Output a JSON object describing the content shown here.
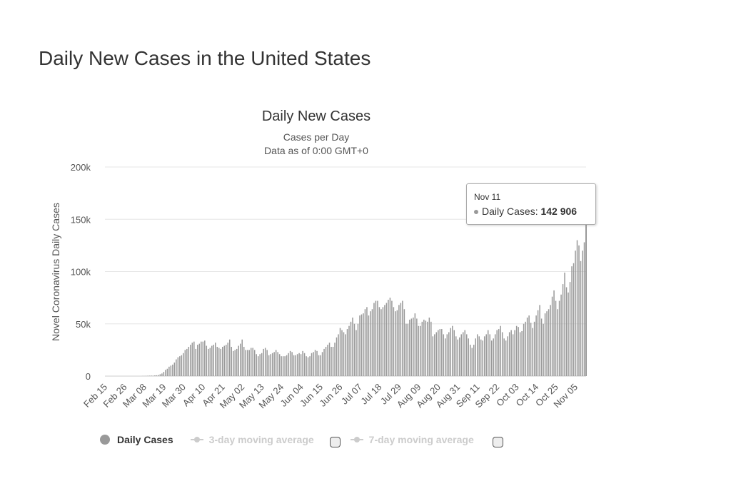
{
  "page_title": "Daily New Cases in the United States",
  "chart_data": {
    "type": "bar",
    "title": "Daily New Cases",
    "subtitle": [
      "Cases per Day",
      "Data as of 0:00 GMT+0"
    ],
    "ylabel": "Novel Coronavirus Daily Cases",
    "xlabel": "",
    "ylim": [
      0,
      200000
    ],
    "y_ticks": [
      {
        "v": 0,
        "label": "0"
      },
      {
        "v": 50000,
        "label": "50k"
      },
      {
        "v": 100000,
        "label": "100k"
      },
      {
        "v": 150000,
        "label": "150k"
      },
      {
        "v": 200000,
        "label": "200k"
      }
    ],
    "x_tick_labels": [
      "Feb 15",
      "Feb 26",
      "Mar 08",
      "Mar 19",
      "Mar 30",
      "Apr 10",
      "Apr 21",
      "May 02",
      "May 13",
      "May 24",
      "Jun 04",
      "Jun 15",
      "Jun 26",
      "Jul 07",
      "Jul 18",
      "Jul 29",
      "Aug 09",
      "Aug 20",
      "Aug 31",
      "Sep 11",
      "Sep 22",
      "Oct 03",
      "Oct 14",
      "Oct 25",
      "Nov 05"
    ],
    "grid": true,
    "bar_color": "#999999",
    "series": [
      {
        "name": "Daily Cases",
        "values": [
          0,
          0,
          0,
          0,
          0,
          0,
          0,
          0,
          0,
          0,
          0,
          0,
          0,
          0,
          0,
          0,
          0,
          0,
          0,
          0,
          0,
          100,
          100,
          200,
          300,
          400,
          500,
          400,
          700,
          800,
          1000,
          1800,
          2500,
          4000,
          6000,
          7000,
          9000,
          10000,
          11000,
          13000,
          16000,
          18000,
          19000,
          20000,
          22000,
          25000,
          26000,
          28000,
          30000,
          32000,
          33000,
          26000,
          30000,
          31000,
          33000,
          33000,
          34000,
          29000,
          26000,
          27000,
          29000,
          30000,
          32000,
          28000,
          27000,
          26000,
          28000,
          29000,
          30000,
          32000,
          35000,
          28000,
          24000,
          25000,
          26000,
          29000,
          31000,
          35000,
          28000,
          25000,
          25000,
          25000,
          27000,
          27000,
          25000,
          21000,
          19000,
          21000,
          22000,
          26000,
          27000,
          25000,
          20000,
          21000,
          22000,
          23000,
          25000,
          23000,
          21000,
          19000,
          19000,
          19000,
          20000,
          22000,
          24000,
          23000,
          20000,
          20000,
          21000,
          22000,
          21000,
          24000,
          22000,
          19000,
          18000,
          19000,
          22000,
          23000,
          25000,
          24000,
          20000,
          20000,
          23000,
          26000,
          28000,
          30000,
          32000,
          28000,
          28000,
          32000,
          37000,
          40000,
          46000,
          44000,
          42000,
          40000,
          45000,
          48000,
          52000,
          56000,
          50000,
          44000,
          50000,
          58000,
          59000,
          60000,
          64000,
          66000,
          58000,
          62000,
          64000,
          70000,
          72000,
          72000,
          66000,
          64000,
          66000,
          68000,
          70000,
          73000,
          75000,
          72000,
          66000,
          62000,
          63000,
          68000,
          70000,
          72000,
          64000,
          50000,
          50000,
          54000,
          55000,
          56000,
          60000,
          55000,
          48000,
          48000,
          52000,
          54000,
          53000,
          52000,
          56000,
          52000,
          38000,
          40000,
          42000,
          44000,
          45000,
          45000,
          40000,
          36000,
          40000,
          42000,
          46000,
          48000,
          44000,
          38000,
          35000,
          37000,
          40000,
          42000,
          44000,
          40000,
          36000,
          30000,
          27000,
          30000,
          36000,
          40000,
          38000,
          35000,
          34000,
          38000,
          40000,
          44000,
          40000,
          34000,
          36000,
          40000,
          44000,
          45000,
          48000,
          42000,
          36000,
          34000,
          38000,
          42000,
          44000,
          40000,
          44000,
          48000,
          47000,
          42000,
          43000,
          50000,
          52000,
          56000,
          58000,
          51000,
          46000,
          52000,
          58000,
          63000,
          68000,
          55000,
          50000,
          60000,
          62000,
          64000,
          68000,
          76000,
          82000,
          72000,
          64000,
          72000,
          78000,
          88000,
          99000,
          85000,
          80000,
          90000,
          105000,
          108000,
          120000,
          130000,
          125000,
          110000,
          120000,
          128000,
          142906
        ]
      }
    ],
    "tooltip": {
      "date": "Nov 11",
      "label": "Daily Cases:",
      "value": "142 906"
    },
    "legend": {
      "placement": "bottom",
      "items": [
        {
          "label": "Daily Cases",
          "active": true
        },
        {
          "label": "3-day moving average",
          "active": false
        },
        {
          "label": "7-day moving average",
          "active": false
        }
      ]
    }
  }
}
